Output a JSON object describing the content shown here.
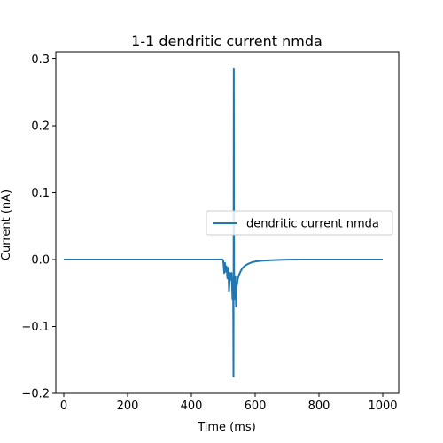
{
  "chart_data": {
    "type": "line",
    "title": "1-1 dendritic current nmda",
    "xlabel": "Time (ms)",
    "ylabel": "Current (nA)",
    "xlim": [
      -25,
      1050
    ],
    "ylim": [
      -0.2,
      0.31
    ],
    "xticks": [
      0,
      200,
      400,
      600,
      800,
      1000
    ],
    "xtick_labels": [
      "0",
      "200",
      "400",
      "600",
      "800",
      "1000"
    ],
    "yticks": [
      -0.2,
      -0.1,
      0.0,
      0.1,
      0.2,
      0.3
    ],
    "ytick_labels": [
      "−0.2",
      "−0.1",
      "0.0",
      "0.1",
      "0.2",
      "0.3"
    ],
    "grid": false,
    "legend": {
      "placement": "center-right"
    },
    "series": [
      {
        "name": "dendritic current nmda",
        "color": "#1f77b4",
        "x": [
          0,
          498,
          500,
          503,
          505,
          508,
          510,
          513,
          516,
          518,
          521,
          524,
          526,
          529,
          531,
          532,
          533,
          534,
          536,
          538,
          540,
          542,
          545,
          548,
          552,
          556,
          560,
          566,
          572,
          580,
          590,
          600,
          615,
          630,
          650,
          675,
          700,
          750,
          800,
          900,
          1000
        ],
        "y": [
          0.0,
          0.0,
          -0.002,
          -0.02,
          -0.005,
          -0.018,
          -0.01,
          -0.028,
          -0.012,
          -0.048,
          -0.02,
          -0.03,
          -0.02,
          -0.06,
          -0.03,
          -0.175,
          0.285,
          -0.06,
          -0.03,
          -0.025,
          -0.07,
          -0.04,
          -0.03,
          -0.025,
          -0.02,
          -0.016,
          -0.013,
          -0.01,
          -0.008,
          -0.006,
          -0.004,
          -0.003,
          -0.002,
          -0.0015,
          -0.001,
          -0.0005,
          -0.0002,
          0.0,
          0.0,
          0.0,
          0.0
        ]
      }
    ]
  }
}
